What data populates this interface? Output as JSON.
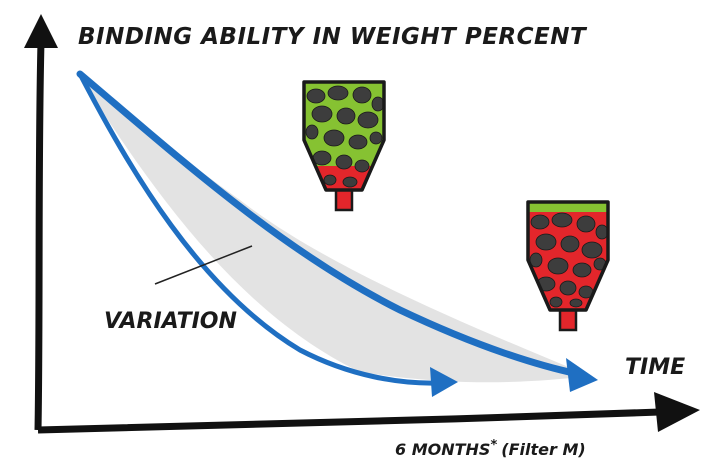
{
  "diagram": {
    "y_axis_label": "BINDING ABILITY IN WEIGHT PERCENT",
    "x_axis_label": "TIME",
    "variation_label": "VARIATION",
    "time_marker_label": "6 MONTHS",
    "time_marker_footnote": "*",
    "time_marker_note": "(Filter M)",
    "colors": {
      "axis": "#111111",
      "curve": "#1f6fc2",
      "variation_band": "#e3e3e3",
      "media_active": "#86c232",
      "media_spent": "#e3262b",
      "granules": "#3d3d3d"
    },
    "icons": [
      "filter-cartridge-fresh-icon",
      "filter-cartridge-spent-icon"
    ]
  }
}
